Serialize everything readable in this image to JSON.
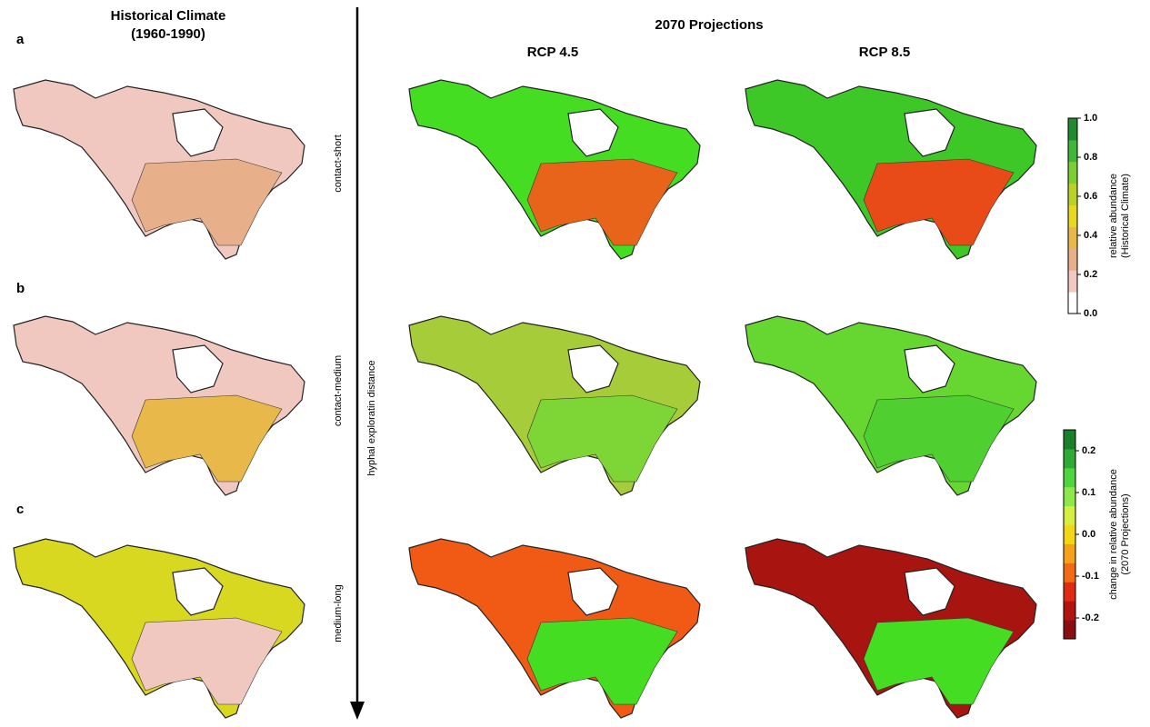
{
  "panels": [
    "a",
    "b",
    "c"
  ],
  "historical": {
    "title": "Historical Climate",
    "subtitle": "(1960-1990)"
  },
  "projections": {
    "title": "2070 Projections",
    "scenarios": [
      "RCP 4.5",
      "RCP 8.5"
    ]
  },
  "rows": [
    "contact-short",
    "contact-medium",
    "medium-long"
  ],
  "axis_label": "hyphal exploratin distance",
  "colorbars": [
    {
      "label": [
        "relative abundance",
        "(Historical Climate)"
      ],
      "ylim": [
        0,
        1
      ],
      "yticks": [
        {
          "value": 0,
          "label": "0.0"
        },
        {
          "value": 0.2,
          "label": "0.2"
        },
        {
          "value": 0.4,
          "label": "0.4"
        },
        {
          "value": 0.6,
          "label": "0.6"
        },
        {
          "value": 0.8,
          "label": "0.8"
        },
        {
          "value": 1,
          "label": "1.0"
        }
      ],
      "colors": [
        "#ffffff",
        "#f2c9c0",
        "#e8b08a",
        "#e8b84a",
        "#e8d820",
        "#b8d22a",
        "#7ccf32",
        "#3fb83a",
        "#1f8a30"
      ]
    },
    {
      "label": [
        "change in relative abundance",
        "(2070 Projections)"
      ],
      "ylim": [
        -0.25,
        0.25
      ],
      "yticks": [
        -0.2,
        -0.1,
        {
          "value": 0,
          "label": "0.0"
        },
        0.1,
        0.2
      ],
      "colors": [
        "#8b0f12",
        "#b3140f",
        "#e02a12",
        "#f26a14",
        "#f5a21a",
        "#f2d814",
        "#d6ee40",
        "#8ee84a",
        "#4ed63c",
        "#2eaa36",
        "#1c7f2a"
      ]
    }
  ]
}
